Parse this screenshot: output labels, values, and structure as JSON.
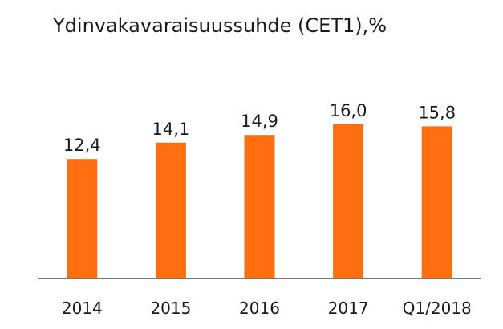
{
  "chart_data": {
    "type": "bar",
    "title": "Ydinvakavaraisuussuhde (CET1),%",
    "categories": [
      "2014",
      "2015",
      "2016",
      "2017",
      "Q1/2018"
    ],
    "values": [
      12.4,
      14.1,
      14.9,
      16.0,
      15.8
    ],
    "value_labels": [
      "12,4",
      "14,1",
      "14,9",
      "16,0",
      "15,8"
    ],
    "xlabel": "",
    "ylabel": "",
    "ylim": [
      0,
      16.0
    ],
    "grid": false,
    "legend": "none",
    "bar_color": "#ff6f12",
    "axis_color": "#4a4a4a",
    "text_color": "#1a1a1a"
  }
}
